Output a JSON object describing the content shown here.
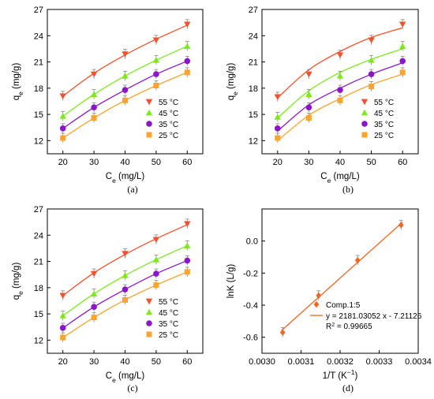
{
  "chart_data": [
    {
      "type": "scatter",
      "panel_label": "(a)",
      "xlabel": "C_e (mg/L)",
      "xlabel_main": "C",
      "xlabel_sub": "e",
      "xlabel_rest": " (mg/L)",
      "ylabel": "q_e (mg/g)",
      "ylabel_main": "q",
      "ylabel_sub": "e",
      "ylabel_rest": " (mg/g)",
      "xlim": [
        15,
        65
      ],
      "ylim": [
        10.5,
        27
      ],
      "xticks": [
        20,
        30,
        40,
        50,
        60
      ],
      "yticks": [
        12,
        15,
        18,
        21,
        24,
        27
      ],
      "legend_position": "bottom-right",
      "series": [
        {
          "name": "55 °C",
          "color": "#f4512c",
          "marker": "triangle-down",
          "x": [
            20,
            30,
            40,
            50,
            60
          ],
          "y": [
            17.1,
            19.6,
            21.9,
            23.5,
            25.3
          ],
          "fit": [
            17.1,
            19.7,
            21.8,
            23.6,
            25.2
          ]
        },
        {
          "name": "45 °C",
          "color": "#7cea1a",
          "marker": "triangle-up",
          "x": [
            20,
            30,
            40,
            50,
            60
          ],
          "y": [
            14.8,
            17.3,
            19.4,
            21.2,
            22.8
          ],
          "fit": [
            14.8,
            17.3,
            19.4,
            21.2,
            22.8
          ]
        },
        {
          "name": "35 °C",
          "color": "#8b16c9",
          "marker": "circle",
          "x": [
            20,
            30,
            40,
            50,
            60
          ],
          "y": [
            13.4,
            15.8,
            17.8,
            19.6,
            21.1
          ],
          "fit": [
            13.4,
            15.8,
            17.8,
            19.6,
            21.1
          ]
        },
        {
          "name": "25 °C",
          "color": "#fba530",
          "marker": "square",
          "x": [
            20,
            30,
            40,
            50,
            60
          ],
          "y": [
            12.3,
            14.6,
            16.6,
            18.3,
            19.8
          ],
          "fit": [
            12.3,
            14.6,
            16.6,
            18.3,
            19.8
          ]
        }
      ]
    },
    {
      "type": "scatter",
      "panel_label": "(b)",
      "xlabel": "C_e (mg/L)",
      "xlabel_main": "C",
      "xlabel_sub": "e",
      "xlabel_rest": " (mg/L)",
      "ylabel": "q_e (mg/g)",
      "ylabel_main": "q",
      "ylabel_sub": "e",
      "ylabel_rest": " (mg/g)",
      "xlim": [
        15,
        65
      ],
      "ylim": [
        10.5,
        27
      ],
      "xticks": [
        20,
        30,
        40,
        50,
        60
      ],
      "yticks": [
        12,
        15,
        18,
        21,
        24,
        27
      ],
      "legend_position": "bottom-right",
      "series": [
        {
          "name": "55 °C",
          "color": "#f4512c",
          "marker": "triangle-down",
          "x": [
            20,
            30,
            40,
            50,
            60
          ],
          "y": [
            17.0,
            19.6,
            21.8,
            23.5,
            25.3
          ],
          "fit": [
            16.9,
            20.1,
            22.2,
            23.8,
            24.9
          ]
        },
        {
          "name": "45 °C",
          "color": "#7cea1a",
          "marker": "triangle-up",
          "x": [
            20,
            30,
            40,
            50,
            60
          ],
          "y": [
            14.7,
            17.3,
            19.4,
            21.2,
            22.8
          ],
          "fit": [
            14.6,
            17.7,
            19.8,
            21.3,
            22.5
          ]
        },
        {
          "name": "35 °C",
          "color": "#8b16c9",
          "marker": "circle",
          "x": [
            20,
            30,
            40,
            50,
            60
          ],
          "y": [
            13.4,
            15.8,
            17.8,
            19.6,
            21.1
          ],
          "fit": [
            13.1,
            16.1,
            18.0,
            19.6,
            20.9
          ]
        },
        {
          "name": "25 °C",
          "color": "#fba530",
          "marker": "square",
          "x": [
            20,
            30,
            40,
            50,
            60
          ],
          "y": [
            12.3,
            14.6,
            16.6,
            18.2,
            19.8
          ],
          "fit": [
            12.0,
            14.9,
            16.8,
            18.4,
            19.6
          ]
        }
      ]
    },
    {
      "type": "scatter",
      "panel_label": "(c)",
      "xlabel": "C_e (mg/L)",
      "xlabel_main": "C",
      "xlabel_sub": "e",
      "xlabel_rest": " (mg/L)",
      "ylabel": "q_e (mg/g)",
      "ylabel_main": "q",
      "ylabel_sub": "e",
      "ylabel_rest": " (mg/g)",
      "xlim": [
        15,
        65
      ],
      "ylim": [
        10.5,
        27
      ],
      "xticks": [
        20,
        30,
        40,
        50,
        60
      ],
      "yticks": [
        12,
        15,
        18,
        21,
        24,
        27
      ],
      "legend_position": "bottom-right",
      "series": [
        {
          "name": "55 °C",
          "color": "#f4512c",
          "marker": "triangle-down",
          "x": [
            20,
            30,
            40,
            50,
            60
          ],
          "y": [
            17.1,
            19.6,
            21.9,
            23.5,
            25.3
          ],
          "fit": [
            17.1,
            19.7,
            21.8,
            23.6,
            25.2
          ]
        },
        {
          "name": "45 °C",
          "color": "#7cea1a",
          "marker": "triangle-up",
          "x": [
            20,
            30,
            40,
            50,
            60
          ],
          "y": [
            14.8,
            17.3,
            19.4,
            21.2,
            22.8
          ],
          "fit": [
            14.8,
            17.3,
            19.4,
            21.2,
            22.8
          ]
        },
        {
          "name": "35 °C",
          "color": "#8b16c9",
          "marker": "circle",
          "x": [
            20,
            30,
            40,
            50,
            60
          ],
          "y": [
            13.4,
            15.8,
            17.8,
            19.6,
            21.1
          ],
          "fit": [
            13.4,
            15.8,
            17.8,
            19.6,
            21.1
          ]
        },
        {
          "name": "25 °C",
          "color": "#fba530",
          "marker": "square",
          "x": [
            20,
            30,
            40,
            50,
            60
          ],
          "y": [
            12.3,
            14.6,
            16.6,
            18.3,
            19.8
          ],
          "fit": [
            12.3,
            14.6,
            16.6,
            18.3,
            19.8
          ]
        }
      ]
    },
    {
      "type": "scatter",
      "panel_label": "(d)",
      "xlabel": "1/T (K^-1)",
      "xlabel_main": "1/T (K",
      "xlabel_sup": "−1",
      "xlabel_rest": ")",
      "ylabel": "lnK (L/g)",
      "ylabel_main": "lnK (L/g)",
      "ylabel_sub": "",
      "ylabel_rest": "",
      "xlim": [
        0.003,
        0.0034
      ],
      "ylim": [
        -0.7,
        0.2
      ],
      "xticks": [
        0.003,
        0.0031,
        0.0032,
        0.0033,
        0.0034
      ],
      "xtick_labels": [
        "0.0030",
        "0.0031",
        "0.0032",
        "0.0033",
        "0.0034"
      ],
      "yticks": [
        -0.6,
        -0.4,
        -0.2,
        0.0
      ],
      "ytick_labels": [
        "-0.6",
        "-0.4",
        "-0.2",
        "0.0"
      ],
      "legend_position": "bottom-right",
      "series": [
        {
          "name": "Comp.1:5",
          "color": "#f26522",
          "marker": "diamond",
          "x": [
            0.003053,
            0.003145,
            0.003245,
            0.003356
          ],
          "y": [
            -0.57,
            -0.34,
            -0.12,
            0.1
          ],
          "fit_line": {
            "x": [
              0.00305,
              0.00336
            ],
            "y": [
              -0.558,
              0.118
            ]
          }
        }
      ],
      "fit_label": "y = 2181.03052 x - 7.21126",
      "r2_label_main": "R",
      "r2_label_sup": "2",
      "r2_label_rest": " = 0.99665"
    }
  ]
}
